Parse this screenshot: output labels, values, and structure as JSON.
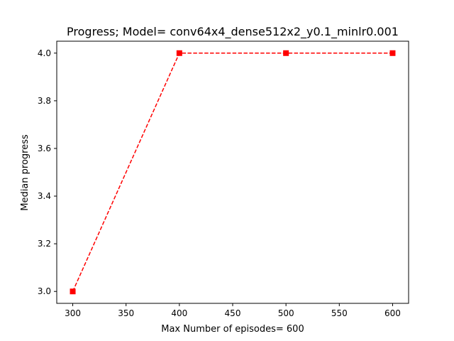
{
  "chart_data": {
    "type": "line",
    "title": "Progress; Model= conv64x4_dense512x2_y0.1_minlr0.001",
    "xlabel": "Max Number of episodes= 600",
    "ylabel": "Median progress",
    "xlim": [
      285,
      615
    ],
    "ylim": [
      2.95,
      4.05
    ],
    "xticks": [
      300,
      350,
      400,
      450,
      500,
      550,
      600
    ],
    "yticks": [
      3.0,
      3.2,
      3.4,
      3.6,
      3.8,
      4.0
    ],
    "xtick_labels": [
      "300",
      "350",
      "400",
      "450",
      "500",
      "550",
      "600"
    ],
    "ytick_labels": [
      "3.0",
      "3.2",
      "3.4",
      "3.6",
      "3.8",
      "4.0"
    ],
    "grid": false,
    "series": [
      {
        "x": [
          300,
          400,
          500,
          600
        ],
        "values": [
          3.0,
          4.0,
          4.0,
          4.0
        ],
        "color": "#ff0000",
        "line_style": "dashed",
        "marker": "square"
      }
    ]
  }
}
